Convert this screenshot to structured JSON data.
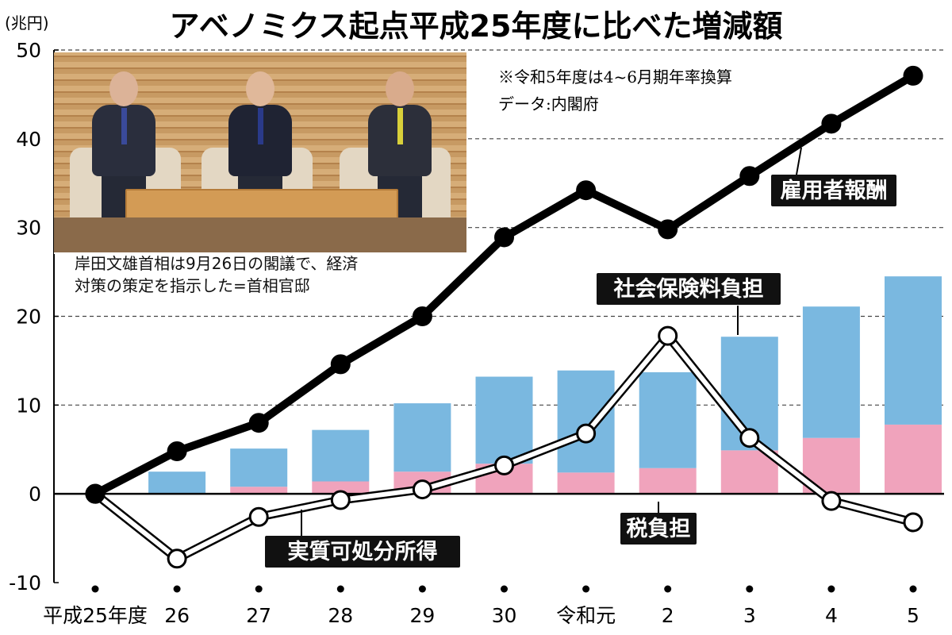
{
  "title": "アベノミクス起点平成25年度に比べた増減額",
  "unit_label": "(兆円)",
  "notes": [
    "※令和5年度は4~6月期年率換算",
    "データ:内閣府"
  ],
  "photo_caption": [
    "岸田文雄首相は9月26日の閣議で、経済",
    "対策の策定を指示した=首相官邸"
  ],
  "colors": {
    "social": "#7ab8e0",
    "tax": "#f0a3bc",
    "employee": "#000000",
    "disposable": "#ffffff"
  },
  "chart_data": {
    "type": "bar",
    "categories": [
      "平成25年度",
      "26",
      "27",
      "28",
      "29",
      "30",
      "令和元",
      "2",
      "3",
      "4",
      "5"
    ],
    "ylim": [
      -10,
      50
    ],
    "yticks": [
      50,
      40,
      30,
      20,
      10,
      0,
      -10
    ],
    "grid": "dashed horizontal",
    "stacked_bars": [
      {
        "name": "税負担",
        "values": [
          0,
          0,
          0.8,
          1.4,
          2.5,
          3.4,
          2.4,
          2.9,
          4.9,
          6.3,
          7.8
        ]
      },
      {
        "name": "社会保険料負担",
        "values": [
          0,
          2.5,
          4.3,
          5.8,
          7.7,
          9.8,
          11.5,
          10.8,
          12.8,
          14.8,
          16.7
        ]
      }
    ],
    "lines": [
      {
        "name": "雇用者報酬",
        "values": [
          0,
          4.8,
          8.0,
          14.6,
          20.0,
          28.9,
          34.2,
          29.8,
          35.8,
          41.7,
          47.1
        ]
      },
      {
        "name": "実質可処分所得",
        "values": [
          0,
          -7.3,
          -2.6,
          -0.7,
          0.5,
          3.2,
          6.8,
          17.8,
          6.3,
          -0.8,
          -3.2
        ]
      }
    ],
    "labels": [
      {
        "text": "雇用者報酬",
        "series": "雇用者報酬"
      },
      {
        "text": "社会保険料負担",
        "series": "社会保険料負担"
      },
      {
        "text": "税負担",
        "series": "税負担"
      },
      {
        "text": "実質可処分所得",
        "series": "実質可処分所得"
      }
    ]
  }
}
